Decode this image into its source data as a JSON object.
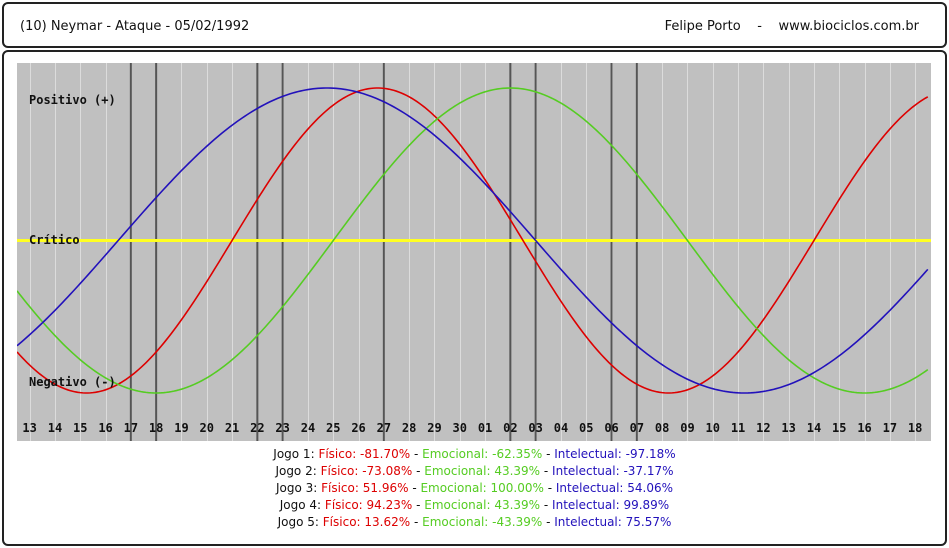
{
  "header": {
    "left": "(10)  Neymar - Ataque -  05/02/1992",
    "author": "Felipe Porto",
    "separator": "-",
    "site": "www.biociclos.com.br"
  },
  "chart_data": {
    "type": "line",
    "x": [
      "13",
      "14",
      "15",
      "16",
      "17",
      "18",
      "19",
      "20",
      "21",
      "22",
      "23",
      "24",
      "25",
      "26",
      "27",
      "28",
      "29",
      "30",
      "01",
      "02",
      "03",
      "04",
      "05",
      "06",
      "07",
      "08",
      "09",
      "10",
      "11",
      "12",
      "13",
      "14",
      "15",
      "16",
      "17",
      "18"
    ],
    "levels": {
      "positive": "Positivo (+)",
      "critical": "Crítico",
      "negative": "Negativo (-)"
    },
    "ylim": [
      -100,
      100
    ],
    "series": [
      {
        "name": "Físico",
        "color": "#dd0000",
        "period": 23,
        "phase": 13.75
      },
      {
        "name": "Emocional",
        "color": "#55cc22",
        "period": 28,
        "phase": 19
      },
      {
        "name": "Intelectual",
        "color": "#2211bb",
        "period": 33,
        "phase": 11.75
      }
    ],
    "game_markers": [
      {
        "index": 4,
        "label": "17"
      },
      {
        "index": 5,
        "label": "18"
      },
      {
        "index": 9,
        "label": "22"
      },
      {
        "index": 10,
        "label": "23"
      },
      {
        "index": 14,
        "label": "27"
      },
      {
        "index": 19,
        "label": "02"
      },
      {
        "index": 20,
        "label": "03"
      },
      {
        "index": 23,
        "label": "06"
      },
      {
        "index": 24,
        "label": "07"
      }
    ],
    "critical_line_color": "#ffff22"
  },
  "games": [
    {
      "name": "Jogo 1:",
      "fis_label": "Físico:",
      "fis": "-81.70%",
      "emo_label": "Emocional:",
      "emo": "-62.35%",
      "int_label": "Intelectual:",
      "int": "-97.18%"
    },
    {
      "name": "Jogo 2:",
      "fis_label": "Físico:",
      "fis": "-73.08%",
      "emo_label": "Emocional:",
      "emo": "43.39%",
      "int_label": "Intelectual:",
      "int": "-37.17%"
    },
    {
      "name": "Jogo 3:",
      "fis_label": "Físico:",
      "fis": "51.96%",
      "emo_label": "Emocional:",
      "emo": "100.00%",
      "int_label": "Intelectual:",
      "int": "54.06%"
    },
    {
      "name": "Jogo 4:",
      "fis_label": "Físico:",
      "fis": "94.23%",
      "emo_label": "Emocional:",
      "emo": "43.39%",
      "int_label": "Intelectual:",
      "int": "99.89%"
    },
    {
      "name": "Jogo 5:",
      "fis_label": "Físico:",
      "fis": "13.62%",
      "emo_label": "Emocional:",
      "emo": "-43.39%",
      "int_label": "Intelectual:",
      "int": "75.57%"
    }
  ],
  "separator": "-"
}
